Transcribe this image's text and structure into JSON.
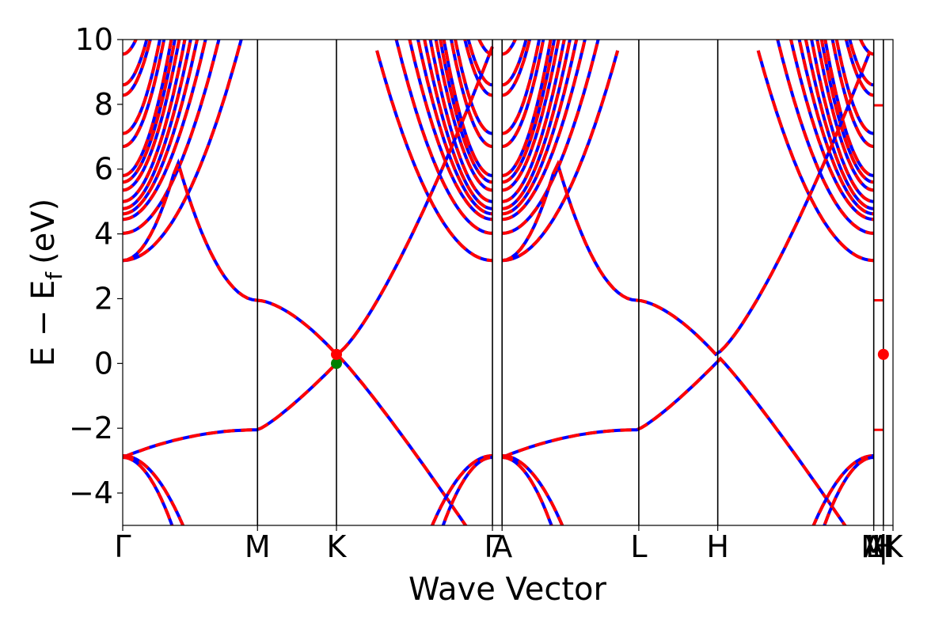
{
  "chart_data": {
    "type": "line",
    "title": "",
    "xlabel": "Wave Vector",
    "ylabel": "E − E",
    "ylabel_subscript": "f",
    "ylabel_unit": "(eV)",
    "ylim": [
      -5,
      10
    ],
    "yticks": [
      10,
      8,
      6,
      4,
      2,
      0,
      -2,
      -4
    ],
    "ytick_labels": [
      "10",
      "8",
      "6",
      "4",
      "2",
      "0",
      "−2",
      "−4"
    ],
    "xlim": [
      0,
      4.0
    ],
    "high_symmetry_points": [
      {
        "label": "Γ",
        "x": 0.0
      },
      {
        "label": "M",
        "x": 0.7
      },
      {
        "label": "K",
        "x": 1.11
      },
      {
        "label": "Γ",
        "x": 1.92
      },
      {
        "label": "A",
        "x": 1.97
      },
      {
        "label": "L",
        "x": 2.68
      },
      {
        "label": "H",
        "x": 3.09
      },
      {
        "label": "A",
        "x": 3.9
      },
      {
        "label": "L",
        "x": 3.9
      },
      {
        "label": "M",
        "x": 3.9
      },
      {
        "label": "|",
        "x": 3.95
      },
      {
        "label": "H",
        "x": 3.95
      },
      {
        "label": "K",
        "x": 4.0
      }
    ],
    "series": [
      {
        "style": "solid",
        "color": "#0000ff"
      },
      {
        "style": "dashed",
        "color": "#ff0000"
      }
    ],
    "special_points": [
      {
        "x": 1.11,
        "y": 0.0,
        "color": "#008000"
      },
      {
        "x": 1.11,
        "y": 0.28,
        "color": "#ff0000"
      },
      {
        "x": 3.95,
        "y": 0.28,
        "color": "#ff0000"
      }
    ]
  }
}
